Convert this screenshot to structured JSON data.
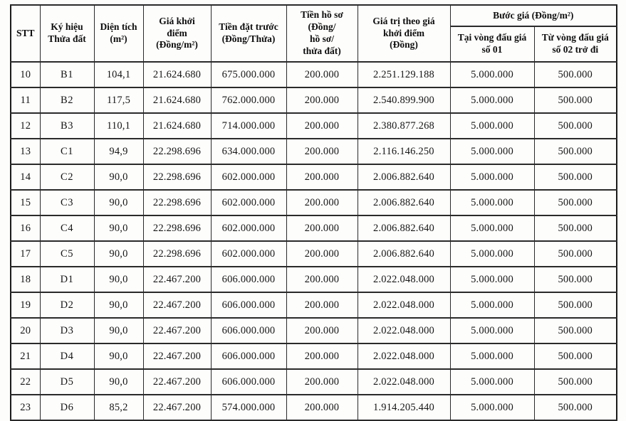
{
  "table": {
    "title_semantic": "Bảng giá đấu giá quyền sử dụng đất (trang danh sách thửa 10-23)",
    "border_color": "#1b1b1b",
    "text_color": "#121212",
    "header": {
      "stt": "STT",
      "parcel": "Ký hiệu\nThửa đất",
      "area": "Diện tích\n(m²)",
      "starting_price": "Giá khởi\nđiểm\n(Đồng/m²)",
      "deposit": "Tiền đặt trước\n(Đồng/Thửa)",
      "dossier_fee": "Tiền hồ sơ\n(Đồng/\nhồ sơ/\nthửa đất)",
      "value_at_start": "Giá trị theo giá\nkhởi điểm\n(Đồng)",
      "price_step_group": "Bước giá (Đồng/m²)",
      "price_step_round1": "Tại vòng đấu giá\nsố 01",
      "price_step_round2plus": "Từ vòng đấu giá\nsố 02 trở đi"
    },
    "rows": [
      [
        "10",
        "B1",
        "104,1",
        "21.624.680",
        "675.000.000",
        "200.000",
        "2.251.129.188",
        "5.000.000",
        "500.000"
      ],
      [
        "11",
        "B2",
        "117,5",
        "21.624.680",
        "762.000.000",
        "200.000",
        "2.540.899.900",
        "5.000.000",
        "500.000"
      ],
      [
        "12",
        "B3",
        "110,1",
        "21.624.680",
        "714.000.000",
        "200.000",
        "2.380.877.268",
        "5.000.000",
        "500.000"
      ],
      [
        "13",
        "C1",
        "94,9",
        "22.298.696",
        "634.000.000",
        "200.000",
        "2.116.146.250",
        "5.000.000",
        "500.000"
      ],
      [
        "14",
        "C2",
        "90,0",
        "22.298.696",
        "602.000.000",
        "200.000",
        "2.006.882.640",
        "5.000.000",
        "500.000"
      ],
      [
        "15",
        "C3",
        "90,0",
        "22.298.696",
        "602.000.000",
        "200.000",
        "2.006.882.640",
        "5.000.000",
        "500.000"
      ],
      [
        "16",
        "C4",
        "90,0",
        "22.298.696",
        "602.000.000",
        "200.000",
        "2.006.882.640",
        "5.000.000",
        "500.000"
      ],
      [
        "17",
        "C5",
        "90,0",
        "22.298.696",
        "602.000.000",
        "200.000",
        "2.006.882.640",
        "5.000.000",
        "500.000"
      ],
      [
        "18",
        "D1",
        "90,0",
        "22.467.200",
        "606.000.000",
        "200.000",
        "2.022.048.000",
        "5.000.000",
        "500.000"
      ],
      [
        "19",
        "D2",
        "90,0",
        "22.467.200",
        "606.000.000",
        "200.000",
        "2.022.048.000",
        "5.000.000",
        "500.000"
      ],
      [
        "20",
        "D3",
        "90,0",
        "22.467.200",
        "606.000.000",
        "200.000",
        "2.022.048.000",
        "5.000.000",
        "500.000"
      ],
      [
        "21",
        "D4",
        "90,0",
        "22.467.200",
        "606.000.000",
        "200.000",
        "2.022.048.000",
        "5.000.000",
        "500.000"
      ],
      [
        "22",
        "D5",
        "90,0",
        "22.467.200",
        "606.000.000",
        "200.000",
        "2.022.048.000",
        "5.000.000",
        "500.000"
      ],
      [
        "23",
        "D6",
        "85,2",
        "22.467.200",
        "574.000.000",
        "200.000",
        "1.914.205.440",
        "5.000.000",
        "500.000"
      ]
    ]
  }
}
